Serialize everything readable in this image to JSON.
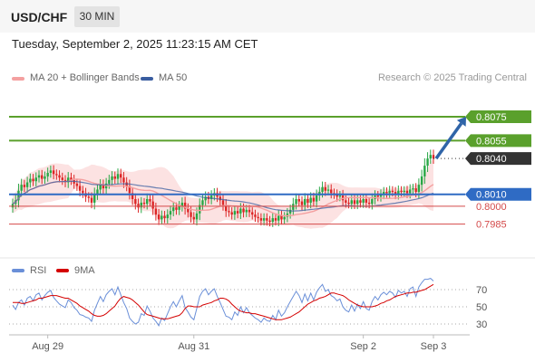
{
  "header": {
    "symbol": "USD/CHF",
    "timeframe": "30 MIN"
  },
  "timestamp": "Tuesday, September 2, 2025 11:23:15 AM CET",
  "legend": {
    "bollinger_label": "MA 20 + Bollinger Bands",
    "ma50_label": "MA 50",
    "credit": "Research © 2025 Trading Central",
    "rsi_label": "RSI",
    "rsi_ma_label": "9MA"
  },
  "colors": {
    "candle_up": "#28a745",
    "candle_down": "#dc2626",
    "bollinger": "#f4a0a0",
    "ma50": "#3a5da0",
    "target": "#5aa02c",
    "pivot": "#2f6bc4",
    "support": "#d44a4a",
    "last": "#333333",
    "rsi": "#6a8fd8",
    "rsi_ma": "#d40000",
    "arrow": "#2f64a8"
  },
  "chart_data": [
    {
      "type": "candlestick",
      "y_range": [
        0.7962,
        0.8097
      ],
      "x_ticks": [
        "Aug 29",
        "Aug 31",
        "Sep 2",
        "Sep 3"
      ],
      "levels": [
        {
          "role": "target",
          "value": 0.8075,
          "label": "0.8075"
        },
        {
          "role": "target",
          "value": 0.8055,
          "label": "0.8055"
        },
        {
          "role": "last",
          "value": 0.804,
          "label": "0.8040"
        },
        {
          "role": "pivot",
          "value": 0.801,
          "label": "0.8010"
        },
        {
          "role": "support",
          "value": 0.8,
          "label": "0.8000"
        },
        {
          "role": "support",
          "value": 0.7985,
          "label": "0.7985"
        }
      ],
      "indicators": [
        "MA 20 + Bollinger Bands",
        "MA 50"
      ],
      "closes": [
        0.8002,
        0.8005,
        0.8013,
        0.8018,
        0.8016,
        0.802,
        0.8023,
        0.8021,
        0.8024,
        0.8026,
        0.8023,
        0.8025,
        0.8028,
        0.803,
        0.8027,
        0.8026,
        0.8024,
        0.8022,
        0.802,
        0.8024,
        0.8022,
        0.8019,
        0.8017,
        0.8013,
        0.8011,
        0.8008,
        0.8007,
        0.8003,
        0.801,
        0.8014,
        0.8018,
        0.8015,
        0.8019,
        0.8022,
        0.8025,
        0.8023,
        0.8027,
        0.8024,
        0.802,
        0.8017,
        0.8011,
        0.8006,
        0.8002,
        0.7999,
        0.8003,
        0.8002,
        0.8006,
        0.8004,
        0.7998,
        0.7993,
        0.7989,
        0.7992,
        0.799,
        0.7993,
        0.7996,
        0.7999,
        0.7997,
        0.8,
        0.8003,
        0.7998,
        0.7995,
        0.7991,
        0.7989,
        0.7994,
        0.8001,
        0.8005,
        0.8008,
        0.8006,
        0.8009,
        0.8011,
        0.8008,
        0.8005,
        0.8001,
        0.7996,
        0.7995,
        0.7993,
        0.7996,
        0.7994,
        0.7998,
        0.7995,
        0.7997,
        0.7995,
        0.7993,
        0.7991,
        0.799,
        0.7988,
        0.799,
        0.7988,
        0.7987,
        0.799,
        0.7988,
        0.7992,
        0.7989,
        0.7991,
        0.7994,
        0.7997,
        0.8002,
        0.8006,
        0.8004,
        0.8001,
        0.8006,
        0.8003,
        0.8007,
        0.8004,
        0.8009,
        0.8012,
        0.8016,
        0.8013,
        0.8014,
        0.8011,
        0.801,
        0.8008,
        0.8009,
        0.8005,
        0.8003,
        0.8002,
        0.8005,
        0.8002,
        0.8005,
        0.8003,
        0.8006,
        0.8003,
        0.8002,
        0.8006,
        0.8009,
        0.8008,
        0.801,
        0.8012,
        0.8011,
        0.8013,
        0.8012,
        0.801,
        0.8013,
        0.8012,
        0.8013,
        0.8011,
        0.8014,
        0.8015,
        0.8012,
        0.8018,
        0.8025,
        0.8034,
        0.804,
        0.8043,
        0.804
      ]
    },
    {
      "type": "line",
      "title": "RSI",
      "y_ticks": [
        70,
        50,
        30
      ],
      "series": [
        {
          "name": "RSI",
          "values": [
            52,
            47,
            55,
            58,
            52,
            60,
            62,
            57,
            64,
            66,
            58,
            63,
            67,
            69,
            61,
            57,
            53,
            51,
            49,
            58,
            55,
            49,
            46,
            41,
            40,
            38,
            37,
            33,
            46,
            54,
            62,
            56,
            64,
            68,
            71,
            64,
            73,
            64,
            55,
            48,
            37,
            33,
            30,
            32,
            42,
            40,
            51,
            45,
            37,
            33,
            28,
            37,
            34,
            42,
            50,
            56,
            50,
            57,
            63,
            49,
            44,
            38,
            35,
            48,
            62,
            68,
            71,
            64,
            68,
            71,
            62,
            55,
            47,
            39,
            38,
            35,
            44,
            40,
            50,
            43,
            49,
            43,
            40,
            37,
            35,
            32,
            37,
            34,
            33,
            40,
            35,
            46,
            39,
            43,
            50,
            56,
            62,
            68,
            63,
            55,
            65,
            57,
            66,
            58,
            67,
            72,
            76,
            68,
            70,
            63,
            61,
            57,
            59,
            50,
            46,
            44,
            52,
            45,
            53,
            48,
            56,
            48,
            46,
            56,
            62,
            58,
            64,
            67,
            64,
            68,
            66,
            61,
            69,
            66,
            68,
            62,
            71,
            73,
            62,
            73,
            78,
            82,
            82,
            83,
            80
          ]
        },
        {
          "name": "9MA",
          "values": [
            55,
            55,
            55,
            54,
            54,
            55,
            56,
            57,
            58,
            60,
            60,
            61,
            62,
            63,
            63,
            63,
            62,
            61,
            60,
            60,
            58,
            56,
            54,
            51,
            49,
            47,
            45,
            42,
            40,
            39,
            39,
            40,
            42,
            45,
            48,
            51,
            56,
            60,
            62,
            61,
            60,
            58,
            55,
            52,
            48,
            44,
            41,
            40,
            39,
            38,
            37,
            36,
            36,
            36,
            37,
            38,
            39,
            40,
            43,
            48,
            51,
            51,
            50,
            50,
            50,
            52,
            53,
            54,
            55,
            57,
            58,
            60,
            60,
            59,
            57,
            53,
            50,
            47,
            45,
            44,
            43,
            43,
            42,
            42,
            41,
            40,
            39,
            38,
            37,
            36,
            35,
            35,
            35,
            36,
            37,
            38,
            40,
            42,
            44,
            47,
            50,
            53,
            55,
            57,
            58,
            60,
            61,
            62,
            64,
            66,
            66,
            65,
            64,
            63,
            61,
            58,
            56,
            54,
            52,
            51,
            50,
            50,
            50,
            50,
            51,
            52,
            54,
            55,
            57,
            58,
            60,
            62,
            63,
            64,
            65,
            66,
            66,
            67,
            67,
            68,
            69,
            70,
            72,
            74,
            76
          ]
        }
      ]
    }
  ]
}
